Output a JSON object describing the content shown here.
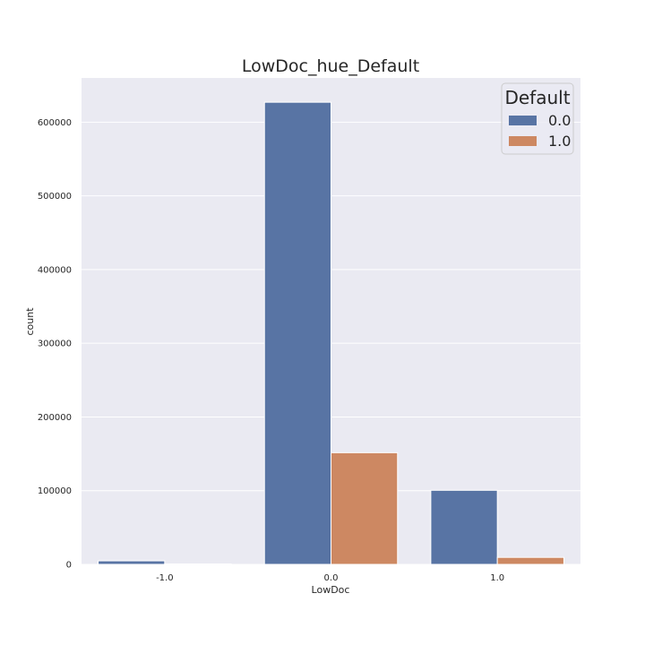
{
  "chart_data": {
    "type": "bar",
    "title": "LowDoc_hue_Default",
    "xlabel": "LowDoc",
    "ylabel": "count",
    "categories": [
      "-1.0",
      "0.0",
      "1.0"
    ],
    "series": [
      {
        "name": "0.0",
        "color": "#5874a4",
        "values": [
          4800,
          627000,
          100500
        ]
      },
      {
        "name": "1.0",
        "color": "#cd8862",
        "values": [
          600,
          151500,
          9500
        ]
      }
    ],
    "ylim": [
      0,
      660000
    ],
    "yticks": [
      0,
      100000,
      200000,
      300000,
      400000,
      500000,
      600000
    ],
    "grid": true,
    "legend": {
      "title": "Default",
      "placement": "top-right"
    },
    "background_color": "#eaeaf2",
    "grid_color": "#ffffff"
  }
}
